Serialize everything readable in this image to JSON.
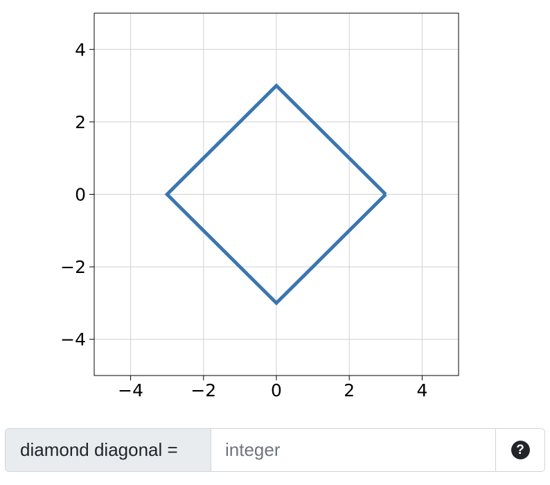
{
  "chart_data": {
    "type": "line",
    "title": "",
    "xlabel": "",
    "ylabel": "",
    "xlim": [
      -5,
      5
    ],
    "ylim": [
      -5,
      5
    ],
    "grid": true,
    "x_ticks": [
      -4,
      -2,
      0,
      2,
      4
    ],
    "y_ticks": [
      -4,
      -2,
      0,
      2,
      4
    ],
    "x_tick_labels": [
      "−4",
      "−2",
      "0",
      "2",
      "4"
    ],
    "y_tick_labels": [
      "−4",
      "−2",
      "0",
      "2",
      "4"
    ],
    "series": [
      {
        "x": [
          3,
          0,
          -3,
          0,
          3
        ],
        "y": [
          0,
          3,
          0,
          -3,
          0
        ],
        "color": "#3a76b0"
      }
    ]
  },
  "form": {
    "prefix_label": "diamond diagonal =",
    "input_placeholder": "integer",
    "input_value": "",
    "help_icon": "question-circle-icon",
    "help_glyph": "?"
  }
}
